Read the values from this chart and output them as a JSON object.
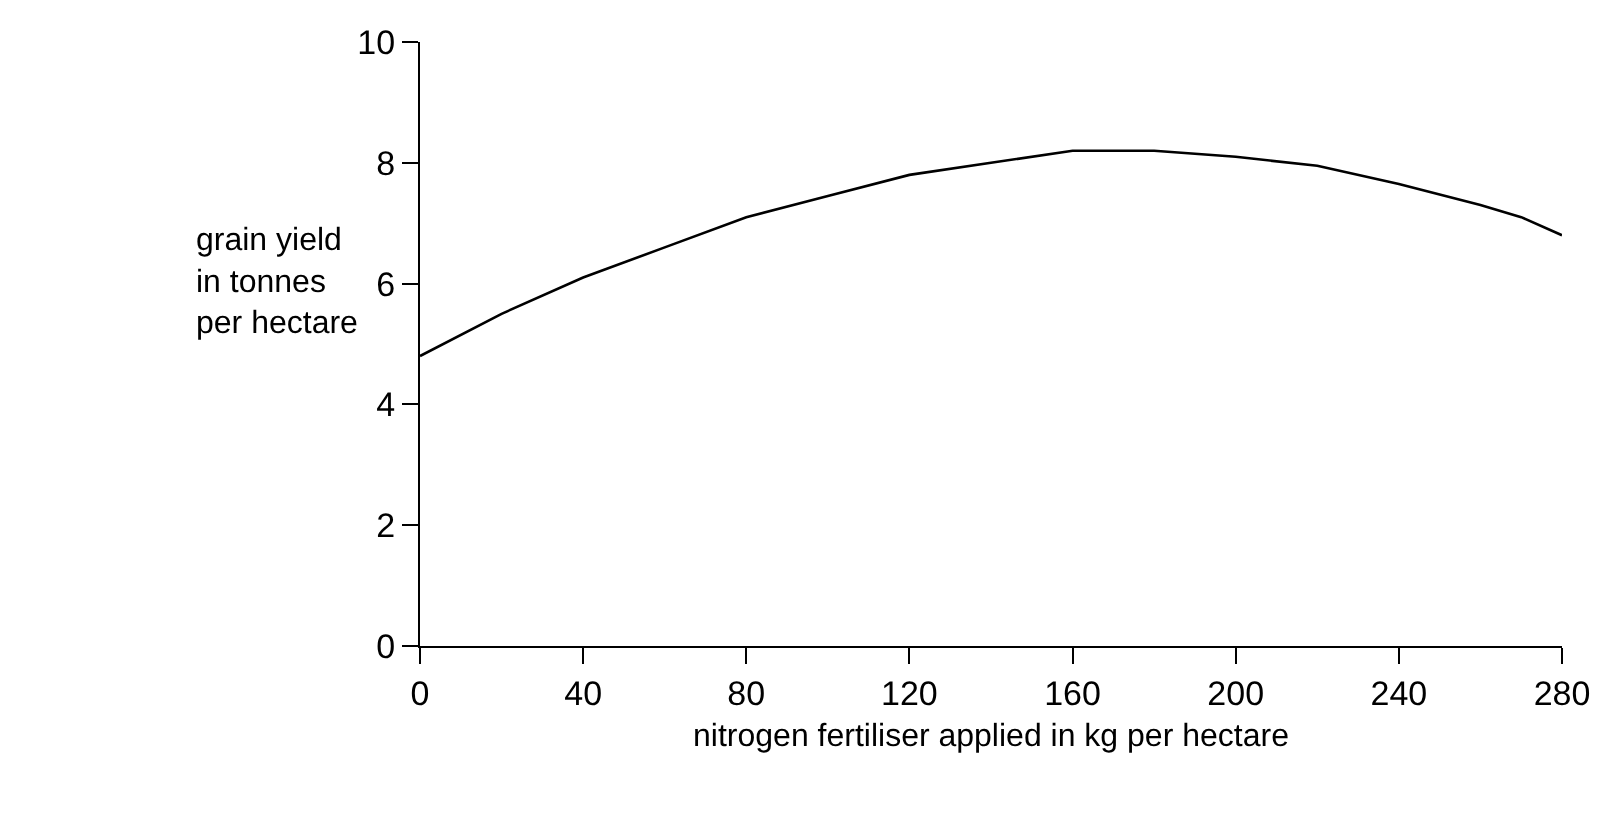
{
  "chart_data": {
    "type": "line",
    "xlabel": "nitrogen fertiliser applied in kg per hectare",
    "ylabel": "grain yield\nin tonnes\nper hectare",
    "x": [
      0,
      20,
      40,
      60,
      80,
      100,
      120,
      140,
      160,
      180,
      200,
      220,
      240,
      260,
      270,
      280
    ],
    "series": [
      {
        "color": "#000000",
        "values": [
          4.8,
          5.5,
          6.1,
          6.6,
          7.1,
          7.45,
          7.8,
          8.0,
          8.2,
          8.2,
          8.1,
          7.95,
          7.65,
          7.3,
          7.1,
          6.8
        ]
      }
    ],
    "xlim": [
      0,
      280
    ],
    "xticks": [
      0,
      40,
      80,
      120,
      160,
      200,
      240,
      280
    ],
    "ylim": [
      0,
      10
    ],
    "yticks": [
      0,
      2,
      4,
      6,
      8,
      10
    ],
    "legend": false,
    "marker": "none",
    "line_style": "solid"
  }
}
